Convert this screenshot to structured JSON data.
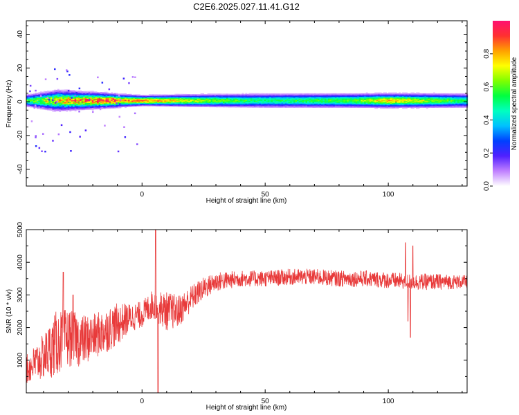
{
  "title": "C2E6.2025.027.11.41.G12",
  "colors": {
    "snr_line": "#e83a3a"
  },
  "chart_data": [
    {
      "type": "heatmap",
      "xlabel": "Height of straight line (km)",
      "ylabel": "Frequency (Hz)",
      "xlim": [
        -47,
        132
      ],
      "ylim": [
        -50,
        48
      ],
      "xticks": [
        0,
        50,
        100
      ],
      "yticks": [
        -40,
        -20,
        0,
        20,
        40
      ],
      "colorbar": {
        "label": "Normalized spectral amplitude",
        "range": [
          0,
          1
        ],
        "ticks": [
          "0.0",
          "0.2",
          "0.4",
          "0.6",
          "0.8"
        ],
        "colormap": [
          "#ffffff",
          "#c080ff",
          "#5020ff",
          "#0040ff",
          "#00c0ff",
          "#00ffc0",
          "#00ff40",
          "#80ff00",
          "#ffff00",
          "#ffa000",
          "#ff3030",
          "#ff1070"
        ]
      },
      "band": {
        "center_frequency_hz": 0.5,
        "description_points": [
          {
            "x": -47,
            "half_width_hz": 3,
            "peak": 0.5
          },
          {
            "x": -35,
            "half_width_hz": 5,
            "peak": 0.7
          },
          {
            "x": -20,
            "half_width_hz": 4,
            "peak": 0.8
          },
          {
            "x": 0,
            "half_width_hz": 2.5,
            "peak": 0.95
          },
          {
            "x": 20,
            "half_width_hz": 3,
            "peak": 0.75
          },
          {
            "x": 50,
            "half_width_hz": 3.5,
            "peak": 0.55
          },
          {
            "x": 85,
            "half_width_hz": 3.5,
            "peak": 0.65
          },
          {
            "x": 100,
            "half_width_hz": 3.5,
            "peak": 0.85
          },
          {
            "x": 132,
            "half_width_hz": 3.5,
            "peak": 0.55
          }
        ]
      }
    },
    {
      "type": "line",
      "xlabel": "Height of straight line (km)",
      "ylabel": "SNR (10 * v/v)",
      "xlim": [
        -47,
        132
      ],
      "ylim": [
        0,
        5000
      ],
      "xticks": [
        0,
        50,
        100
      ],
      "yticks": [
        1000,
        2000,
        3000,
        4000,
        5000
      ],
      "series": [
        {
          "color": "#e83a3a",
          "envelope": [
            {
              "x": -47,
              "y": 700,
              "spread": 450
            },
            {
              "x": -40,
              "y": 1100,
              "spread": 700
            },
            {
              "x": -35,
              "y": 1500,
              "spread": 1000
            },
            {
              "x": -30,
              "y": 1700,
              "spread": 900
            },
            {
              "x": -25,
              "y": 1600,
              "spread": 800
            },
            {
              "x": -20,
              "y": 1700,
              "spread": 700
            },
            {
              "x": -15,
              "y": 1900,
              "spread": 700
            },
            {
              "x": -10,
              "y": 2100,
              "spread": 650
            },
            {
              "x": -5,
              "y": 2300,
              "spread": 450
            },
            {
              "x": 0,
              "y": 2400,
              "spread": 400
            },
            {
              "x": 4,
              "y": 2700,
              "spread": 450
            },
            {
              "x": 10,
              "y": 2500,
              "spread": 600
            },
            {
              "x": 15,
              "y": 2500,
              "spread": 500
            },
            {
              "x": 20,
              "y": 2900,
              "spread": 400
            },
            {
              "x": 25,
              "y": 3200,
              "spread": 350
            },
            {
              "x": 30,
              "y": 3400,
              "spread": 300
            },
            {
              "x": 40,
              "y": 3500,
              "spread": 250
            },
            {
              "x": 50,
              "y": 3500,
              "spread": 250
            },
            {
              "x": 60,
              "y": 3550,
              "spread": 250
            },
            {
              "x": 70,
              "y": 3550,
              "spread": 250
            },
            {
              "x": 80,
              "y": 3500,
              "spread": 250
            },
            {
              "x": 90,
              "y": 3500,
              "spread": 250
            },
            {
              "x": 100,
              "y": 3450,
              "spread": 250
            },
            {
              "x": 110,
              "y": 3400,
              "spread": 250
            },
            {
              "x": 120,
              "y": 3400,
              "spread": 250
            },
            {
              "x": 132,
              "y": 3400,
              "spread": 200
            }
          ],
          "features": [
            {
              "x": -32,
              "y": 3700
            },
            {
              "x": -28,
              "y": 3000
            },
            {
              "x": 5.5,
              "y": 5000
            },
            {
              "x": 6.5,
              "y": 0
            },
            {
              "x": 107,
              "y": 4600
            },
            {
              "x": 108,
              "y": 2200
            },
            {
              "x": 109,
              "y": 1700
            },
            {
              "x": 110,
              "y": 4500
            }
          ]
        }
      ]
    }
  ]
}
